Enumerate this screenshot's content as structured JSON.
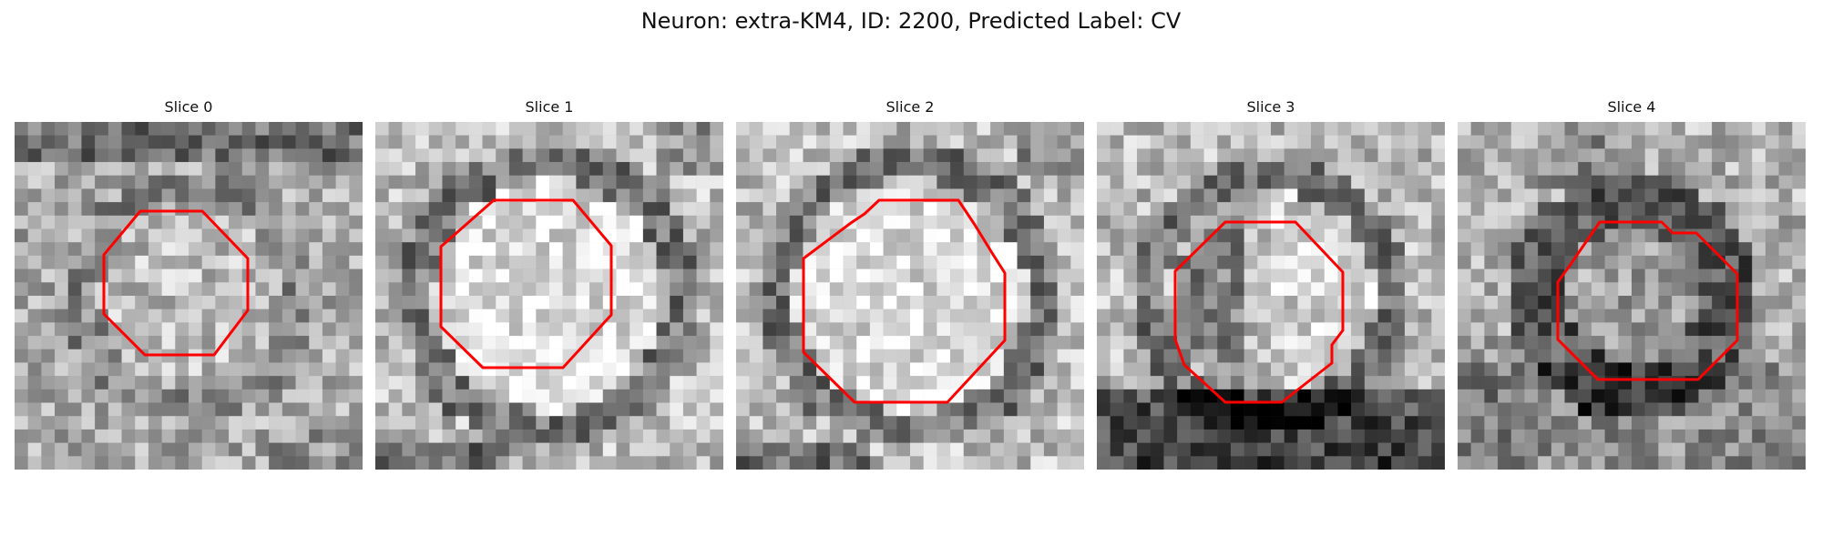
{
  "title": "Neuron: extra-KM4, ID: 2200, Predicted Label: CV",
  "panels": [
    {
      "title": "Slice 0",
      "background": "medium",
      "ring_position": "center",
      "contour_color": "#ff0000"
    },
    {
      "title": "Slice 1",
      "background": "bright",
      "ring_position": "center",
      "contour_color": "#ff0000"
    },
    {
      "title": "Slice 2",
      "background": "bright",
      "ring_position": "center",
      "contour_color": "#ff0000"
    },
    {
      "title": "Slice 3",
      "background": "bright-top-dark-bottom",
      "ring_position": "center",
      "contour_color": "#ff0000"
    },
    {
      "title": "Slice 4",
      "background": "dark-ring",
      "ring_position": "center",
      "contour_color": "#ff0000"
    }
  ]
}
